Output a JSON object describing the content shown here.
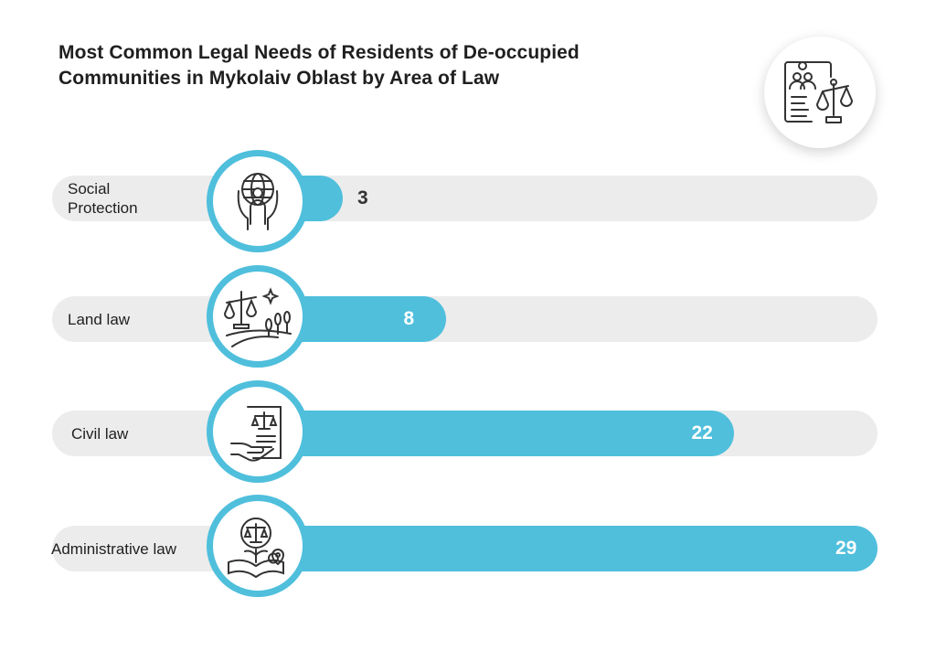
{
  "colors": {
    "bar": "#4fbfdc",
    "track": "#ececec",
    "text": "#1f1f1f"
  },
  "header_icon": "legal-document-scales-icon",
  "chart_data": {
    "type": "bar",
    "orientation": "horizontal",
    "title": "Most Common Legal Needs of Residents of De-occupied Communities in Mykolaiv Oblast by Area of Law",
    "title_lines": [
      "Most Common Legal Needs of Residents of De-occupied",
      "Communities in Mykolaiv Oblast by Area of Law"
    ],
    "categories": [
      "Social Protection",
      "Land law",
      "Civil law",
      "Administrative law"
    ],
    "label_lines": [
      [
        "Social",
        "Protection"
      ],
      [
        "Land law"
      ],
      [
        "Civil law"
      ],
      [
        "Administrative law"
      ]
    ],
    "values": [
      3,
      8,
      22,
      29
    ],
    "icons": [
      "hands-globe-person-icon",
      "scales-land-trees-icon",
      "hand-document-scales-icon",
      "scales-book-location-icon"
    ],
    "xlim": [
      0,
      29
    ],
    "grid": false,
    "legend": "none"
  }
}
